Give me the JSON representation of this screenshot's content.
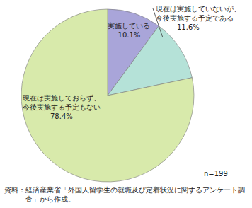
{
  "chart_data": {
    "type": "pie",
    "categories": [
      "実施している",
      "現在は実施していないが、今後実施する予定である",
      "現在は実施しておらず、今後実施する予定もない"
    ],
    "values": [
      10.1,
      11.6,
      78.4
    ],
    "value_labels": [
      "10.1%",
      "11.6%",
      "78.4%"
    ],
    "colors": [
      "#a9a5d9",
      "#b5e2d8",
      "#d8eaab"
    ],
    "data_labels": true,
    "annotations": [
      "n=199",
      "資料：経済産業省「外国人留学生の就職及び定着状況に関するアンケート調査」から作成。"
    ]
  }
}
